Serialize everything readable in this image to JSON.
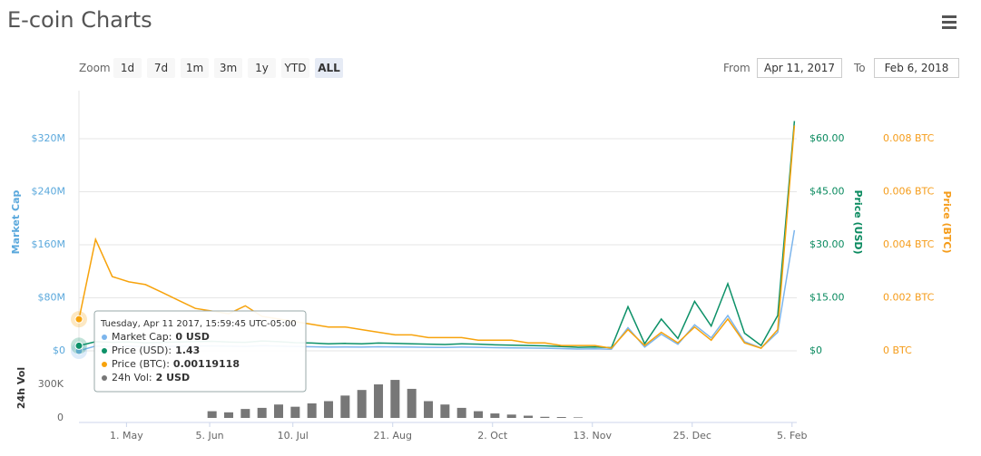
{
  "header": {
    "title": "E-coin Charts"
  },
  "controls": {
    "zoom_label": "Zoom",
    "zoom_buttons": [
      "1d",
      "7d",
      "1m",
      "3m",
      "1y",
      "YTD",
      "ALL"
    ],
    "selected": 6,
    "from_label": "From",
    "from": "Apr 11, 2017",
    "to_label": "To",
    "to": "Feb 6, 2018"
  },
  "chart_data": [
    {
      "type": "line",
      "x": [
        "2017-04-11",
        "2017-04-18",
        "2017-04-25",
        "2017-05-02",
        "2017-05-09",
        "2017-05-16",
        "2017-05-23",
        "2017-05-30",
        "2017-06-06",
        "2017-06-13",
        "2017-06-20",
        "2017-06-27",
        "2017-07-04",
        "2017-07-11",
        "2017-07-18",
        "2017-07-25",
        "2017-08-01",
        "2017-08-08",
        "2017-08-15",
        "2017-08-22",
        "2017-08-29",
        "2017-09-05",
        "2017-09-12",
        "2017-09-19",
        "2017-09-26",
        "2017-10-03",
        "2017-10-10",
        "2017-10-17",
        "2017-10-24",
        "2017-10-31",
        "2017-11-07",
        "2017-11-14",
        "2017-11-21",
        "2017-11-28",
        "2017-12-05",
        "2017-12-12",
        "2017-12-19",
        "2017-12-26",
        "2018-01-02",
        "2018-01-09",
        "2018-01-16",
        "2018-01-23",
        "2018-01-30",
        "2018-02-06"
      ],
      "xlim": [
        "2017-04-11",
        "2018-02-07"
      ],
      "series": [
        {
          "name": "Market Cap",
          "color": "#7cb5ec",
          "axis": "y",
          "values": [
            0,
            7280000,
            6720000,
            7000000,
            6440000,
            6720000,
            7000000,
            7280000,
            7560000,
            7000000,
            6720000,
            7840000,
            7280000,
            6440000,
            6160000,
            5600000,
            5880000,
            5600000,
            6160000,
            5880000,
            5600000,
            5320000,
            5040000,
            5600000,
            5320000,
            4760000,
            4480000,
            4200000,
            3920000,
            3360000,
            2800000,
            3080000,
            2520000,
            35000000,
            5600000,
            25200000,
            9800000,
            39200000,
            19600000,
            53200000,
            14000000,
            4200000,
            28000000,
            182000000
          ]
        },
        {
          "name": "Price (USD)",
          "color": "#0d9168",
          "axis": "y2",
          "values": [
            1.43,
            2.6,
            2.4,
            2.5,
            2.3,
            2.4,
            2.5,
            2.6,
            2.7,
            2.5,
            2.4,
            2.8,
            2.6,
            2.3,
            2.2,
            2.0,
            2.1,
            2.0,
            2.2,
            2.1,
            2.0,
            1.9,
            1.8,
            2.0,
            1.9,
            1.7,
            1.6,
            1.5,
            1.4,
            1.2,
            1.0,
            1.1,
            0.9,
            12.5,
            2.0,
            9.0,
            3.5,
            14.0,
            7.0,
            19.0,
            5.0,
            1.5,
            10.0,
            65
          ]
        },
        {
          "name": "Price (BTC)",
          "color": "#f7a30c",
          "axis": "y3",
          "values": [
            0.00119118,
            0.0042,
            0.0028,
            0.0026,
            0.0025,
            0.0022,
            0.0019,
            0.0016,
            0.0015,
            0.0014,
            0.0017,
            0.0013,
            0.0012,
            0.0011,
            0.001,
            0.0009,
            0.0009,
            0.0008,
            0.0007,
            0.0006,
            0.0006,
            0.0005,
            0.0005,
            0.0005,
            0.0004,
            0.0004,
            0.0004,
            0.0003,
            0.0003,
            0.0002,
            0.0002,
            0.0002,
            0.0001,
            0.0008,
            0.0002,
            0.0007,
            0.0003,
            0.0009,
            0.0004,
            0.0012,
            0.0003,
            0.0001,
            0.0008,
            0.0085
          ]
        }
      ],
      "ylabel": "Market Cap",
      "ylim": [
        0,
        400000000
      ],
      "yticks": [
        {
          "value": 0,
          "label": "$0"
        },
        {
          "value": 80000000,
          "label": "$80M"
        },
        {
          "value": 160000000,
          "label": "$160M"
        },
        {
          "value": 240000000,
          "label": "$240M"
        },
        {
          "value": 320000000,
          "label": "$320M"
        }
      ],
      "y2label": "Price (USD)",
      "y2lim": [
        0,
        75
      ],
      "y2ticks": [
        {
          "value": 0,
          "label": "$0"
        },
        {
          "value": 15,
          "label": "$15.00"
        },
        {
          "value": 30,
          "label": "$30.00"
        },
        {
          "value": 45,
          "label": "$45.00"
        },
        {
          "value": 60,
          "label": "$60.00"
        }
      ],
      "y3label": "Price (BTC)",
      "y3lim": [
        0,
        0.01
      ],
      "y3ticks": [
        {
          "value": 0,
          "label": "0 BTC"
        },
        {
          "value": 0.002,
          "label": "0.002 BTC"
        },
        {
          "value": 0.004,
          "label": "0.004 BTC"
        },
        {
          "value": 0.006,
          "label": "0.006 BTC"
        },
        {
          "value": 0.008,
          "label": "0.008 BTC"
        }
      ],
      "grid": true
    },
    {
      "type": "bar",
      "color": "#777777",
      "x": [
        "2017-04-11",
        "2017-04-18",
        "2017-04-25",
        "2017-05-02",
        "2017-05-09",
        "2017-05-16",
        "2017-05-23",
        "2017-05-30",
        "2017-06-06",
        "2017-06-13",
        "2017-06-20",
        "2017-06-27",
        "2017-07-04",
        "2017-07-11",
        "2017-07-18",
        "2017-07-25",
        "2017-08-01",
        "2017-08-08",
        "2017-08-15",
        "2017-08-22",
        "2017-08-29",
        "2017-09-05",
        "2017-09-12",
        "2017-09-19",
        "2017-09-26",
        "2017-10-03",
        "2017-10-10",
        "2017-10-17",
        "2017-10-24",
        "2017-10-31",
        "2017-11-07",
        "2017-11-14",
        "2017-11-21",
        "2017-11-28",
        "2017-12-05",
        "2017-12-12",
        "2017-12-19",
        "2017-12-26",
        "2018-01-02",
        "2018-01-09",
        "2018-01-16",
        "2018-01-23",
        "2018-01-30",
        "2018-02-06"
      ],
      "values": [
        2,
        0,
        0,
        0,
        0,
        0,
        0,
        0,
        60000,
        50000,
        80000,
        90000,
        120000,
        100000,
        130000,
        150000,
        200000,
        250000,
        300000,
        340000,
        260000,
        150000,
        120000,
        90000,
        60000,
        40000,
        30000,
        20000,
        10000,
        8000,
        5000,
        0,
        0,
        0,
        0,
        0,
        0,
        0,
        0,
        0,
        0,
        0,
        0,
        0
      ],
      "xlim": [
        "2017-04-11",
        "2018-02-07"
      ],
      "xticks": [
        {
          "value": "2017-05-01",
          "label": "1. May"
        },
        {
          "value": "2017-06-05",
          "label": "5. Jun"
        },
        {
          "value": "2017-07-10",
          "label": "10. Jul"
        },
        {
          "value": "2017-08-21",
          "label": "21. Aug"
        },
        {
          "value": "2017-10-02",
          "label": "2. Oct"
        },
        {
          "value": "2017-11-13",
          "label": "13. Nov"
        },
        {
          "value": "2017-12-25",
          "label": "25. Dec"
        },
        {
          "value": "2018-02-05",
          "label": "5. Feb"
        }
      ],
      "ylabel": "24h Vol",
      "ylim": [
        0,
        450000
      ],
      "yticks": [
        0,
        {
          "value": 300000,
          "label": "300K"
        }
      ]
    }
  ],
  "tooltip": {
    "title": "Tuesday, Apr 11 2017, 15:59:45 UTC-05:00",
    "rows": [
      {
        "label": "Market Cap:",
        "value": "0 USD"
      },
      {
        "label": "Price (USD):",
        "value": "1.43"
      },
      {
        "label": "Price (BTC):",
        "value": "0.00119118"
      },
      {
        "label": "24h Vol:",
        "value": "2 USD"
      }
    ]
  }
}
